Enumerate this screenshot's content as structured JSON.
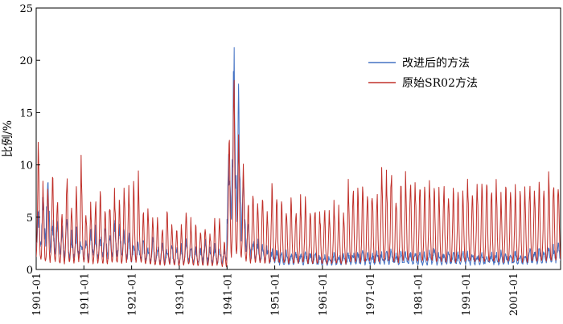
{
  "chart_data": {
    "type": "line",
    "xlabel": "",
    "ylabel": "比例/%",
    "ylim": [
      0,
      25
    ],
    "yticks": [
      0,
      5,
      10,
      15,
      20,
      25
    ],
    "x_start": "1901-01",
    "x_end": "2010-12",
    "xticks": [
      "1901-01",
      "1911-01",
      "1921-01",
      "1931-01",
      "1941-01",
      "1951-01",
      "1961-01",
      "1971-01",
      "1981-01",
      "1991-01",
      "2001-01"
    ],
    "legend_position": "top-right",
    "grid": false,
    "series": [
      {
        "name": "改进后的方法",
        "color": "#4472c4",
        "annual_peaks": [
          {
            "year": 1901,
            "value": 5.5
          },
          {
            "year": 1902,
            "value": 7.0
          },
          {
            "year": 1903,
            "value": 8.0
          },
          {
            "year": 1904,
            "value": 4.5
          },
          {
            "year": 1905,
            "value": 5.0
          },
          {
            "year": 1906,
            "value": 3.5
          },
          {
            "year": 1907,
            "value": 4.0
          },
          {
            "year": 1908,
            "value": 3.0
          },
          {
            "year": 1909,
            "value": 3.5
          },
          {
            "year": 1910,
            "value": 3.0
          },
          {
            "year": 1911,
            "value": 3.0
          },
          {
            "year": 1912,
            "value": 4.0
          },
          {
            "year": 1913,
            "value": 3.5
          },
          {
            "year": 1914,
            "value": 3.0
          },
          {
            "year": 1915,
            "value": 3.5
          },
          {
            "year": 1916,
            "value": 3.0
          },
          {
            "year": 1917,
            "value": 4.5
          },
          {
            "year": 1918,
            "value": 4.0
          },
          {
            "year": 1919,
            "value": 3.5
          },
          {
            "year": 1920,
            "value": 3.0
          },
          {
            "year": 1921,
            "value": 2.5
          },
          {
            "year": 1922,
            "value": 2.5
          },
          {
            "year": 1923,
            "value": 2.5
          },
          {
            "year": 1924,
            "value": 2.0
          },
          {
            "year": 1925,
            "value": 2.5
          },
          {
            "year": 1926,
            "value": 2.0
          },
          {
            "year": 1927,
            "value": 2.5
          },
          {
            "year": 1928,
            "value": 2.0
          },
          {
            "year": 1929,
            "value": 2.0
          },
          {
            "year": 1930,
            "value": 2.0
          },
          {
            "year": 1931,
            "value": 2.0
          },
          {
            "year": 1932,
            "value": 2.5
          },
          {
            "year": 1933,
            "value": 2.0
          },
          {
            "year": 1934,
            "value": 2.0
          },
          {
            "year": 1935,
            "value": 2.0
          },
          {
            "year": 1936,
            "value": 2.5
          },
          {
            "year": 1937,
            "value": 2.0
          },
          {
            "year": 1938,
            "value": 2.0
          },
          {
            "year": 1939,
            "value": 2.0
          },
          {
            "year": 1940,
            "value": 2.0
          },
          {
            "year": 1941,
            "value": 11.0
          },
          {
            "year": 1942,
            "value": 19.2
          },
          {
            "year": 1943,
            "value": 14.0
          },
          {
            "year": 1944,
            "value": 7.5
          },
          {
            "year": 1945,
            "value": 5.0
          },
          {
            "year": 1946,
            "value": 3.0
          },
          {
            "year": 1947,
            "value": 2.5
          },
          {
            "year": 1948,
            "value": 2.0
          },
          {
            "year": 1949,
            "value": 2.0
          },
          {
            "year": 1950,
            "value": 1.8
          },
          {
            "year": 1951,
            "value": 1.8
          },
          {
            "year": 1952,
            "value": 1.5
          },
          {
            "year": 1953,
            "value": 1.5
          },
          {
            "year": 1954,
            "value": 1.5
          },
          {
            "year": 1955,
            "value": 1.5
          },
          {
            "year": 1956,
            "value": 1.5
          },
          {
            "year": 1957,
            "value": 1.5
          },
          {
            "year": 1958,
            "value": 1.5
          },
          {
            "year": 1959,
            "value": 1.5
          },
          {
            "year": 1960,
            "value": 1.3
          },
          {
            "year": 1961,
            "value": 1.3
          },
          {
            "year": 1962,
            "value": 1.3
          },
          {
            "year": 1963,
            "value": 1.3
          },
          {
            "year": 1964,
            "value": 1.3
          },
          {
            "year": 1965,
            "value": 1.5
          },
          {
            "year": 1966,
            "value": 1.5
          },
          {
            "year": 1967,
            "value": 1.5
          },
          {
            "year": 1968,
            "value": 1.5
          },
          {
            "year": 1969,
            "value": 1.5
          },
          {
            "year": 1970,
            "value": 1.5
          },
          {
            "year": 1971,
            "value": 1.5
          },
          {
            "year": 1972,
            "value": 1.5
          },
          {
            "year": 1973,
            "value": 1.5
          },
          {
            "year": 1974,
            "value": 1.5
          },
          {
            "year": 1975,
            "value": 1.8
          },
          {
            "year": 1976,
            "value": 1.5
          },
          {
            "year": 1977,
            "value": 1.5
          },
          {
            "year": 1978,
            "value": 1.5
          },
          {
            "year": 1979,
            "value": 1.5
          },
          {
            "year": 1980,
            "value": 1.5
          },
          {
            "year": 1981,
            "value": 1.5
          },
          {
            "year": 1982,
            "value": 1.5
          },
          {
            "year": 1983,
            "value": 1.5
          },
          {
            "year": 1984,
            "value": 1.8
          },
          {
            "year": 1985,
            "value": 1.5
          },
          {
            "year": 1986,
            "value": 1.5
          },
          {
            "year": 1987,
            "value": 1.5
          },
          {
            "year": 1988,
            "value": 1.5
          },
          {
            "year": 1989,
            "value": 1.5
          },
          {
            "year": 1990,
            "value": 1.5
          },
          {
            "year": 1991,
            "value": 1.5
          },
          {
            "year": 1992,
            "value": 1.5
          },
          {
            "year": 1993,
            "value": 1.5
          },
          {
            "year": 1994,
            "value": 1.5
          },
          {
            "year": 1995,
            "value": 1.5
          },
          {
            "year": 1996,
            "value": 1.5
          },
          {
            "year": 1997,
            "value": 1.5
          },
          {
            "year": 1998,
            "value": 1.5
          },
          {
            "year": 1999,
            "value": 1.5
          },
          {
            "year": 2000,
            "value": 1.5
          },
          {
            "year": 2001,
            "value": 1.5
          },
          {
            "year": 2002,
            "value": 1.5
          },
          {
            "year": 2003,
            "value": 1.5
          },
          {
            "year": 2004,
            "value": 1.8
          },
          {
            "year": 2005,
            "value": 1.8
          },
          {
            "year": 2006,
            "value": 1.8
          },
          {
            "year": 2007,
            "value": 1.8
          },
          {
            "year": 2008,
            "value": 2.0
          },
          {
            "year": 2009,
            "value": 2.0
          },
          {
            "year": 2010,
            "value": 2.5
          }
        ]
      },
      {
        "name": "原始SR02方法",
        "color": "#c0302a",
        "annual_peaks": [
          {
            "year": 1901,
            "value": 11.0
          },
          {
            "year": 1902,
            "value": 8.0
          },
          {
            "year": 1903,
            "value": 7.5
          },
          {
            "year": 1904,
            "value": 9.5
          },
          {
            "year": 1905,
            "value": 6.5
          },
          {
            "year": 1906,
            "value": 5.5
          },
          {
            "year": 1907,
            "value": 8.5
          },
          {
            "year": 1908,
            "value": 6.0
          },
          {
            "year": 1909,
            "value": 7.5
          },
          {
            "year": 1910,
            "value": 10.2
          },
          {
            "year": 1911,
            "value": 5.5
          },
          {
            "year": 1912,
            "value": 6.0
          },
          {
            "year": 1913,
            "value": 6.5
          },
          {
            "year": 1914,
            "value": 7.0
          },
          {
            "year": 1915,
            "value": 5.5
          },
          {
            "year": 1916,
            "value": 6.5
          },
          {
            "year": 1917,
            "value": 7.0
          },
          {
            "year": 1918,
            "value": 6.0
          },
          {
            "year": 1919,
            "value": 7.5
          },
          {
            "year": 1920,
            "value": 7.5
          },
          {
            "year": 1921,
            "value": 7.5
          },
          {
            "year": 1922,
            "value": 8.5
          },
          {
            "year": 1923,
            "value": 5.5
          },
          {
            "year": 1924,
            "value": 5.5
          },
          {
            "year": 1925,
            "value": 4.5
          },
          {
            "year": 1926,
            "value": 5.0
          },
          {
            "year": 1927,
            "value": 4.0
          },
          {
            "year": 1928,
            "value": 5.5
          },
          {
            "year": 1929,
            "value": 4.5
          },
          {
            "year": 1930,
            "value": 4.0
          },
          {
            "year": 1931,
            "value": 4.0
          },
          {
            "year": 1932,
            "value": 5.0
          },
          {
            "year": 1933,
            "value": 4.5
          },
          {
            "year": 1934,
            "value": 4.0
          },
          {
            "year": 1935,
            "value": 4.0
          },
          {
            "year": 1936,
            "value": 4.0
          },
          {
            "year": 1937,
            "value": 3.5
          },
          {
            "year": 1938,
            "value": 4.5
          },
          {
            "year": 1939,
            "value": 5.0
          },
          {
            "year": 1940,
            "value": 2.5
          },
          {
            "year": 1941,
            "value": 12.5
          },
          {
            "year": 1942,
            "value": 18.6
          },
          {
            "year": 1943,
            "value": 12.5
          },
          {
            "year": 1944,
            "value": 10.0
          },
          {
            "year": 1945,
            "value": 6.0
          },
          {
            "year": 1946,
            "value": 7.5
          },
          {
            "year": 1947,
            "value": 6.5
          },
          {
            "year": 1948,
            "value": 6.5
          },
          {
            "year": 1949,
            "value": 5.5
          },
          {
            "year": 1950,
            "value": 7.5
          },
          {
            "year": 1951,
            "value": 7.0
          },
          {
            "year": 1952,
            "value": 6.5
          },
          {
            "year": 1953,
            "value": 6.0
          },
          {
            "year": 1954,
            "value": 6.5
          },
          {
            "year": 1955,
            "value": 5.5
          },
          {
            "year": 1956,
            "value": 6.5
          },
          {
            "year": 1957,
            "value": 6.5
          },
          {
            "year": 1958,
            "value": 5.5
          },
          {
            "year": 1959,
            "value": 5.5
          },
          {
            "year": 1960,
            "value": 5.5
          },
          {
            "year": 1961,
            "value": 5.5
          },
          {
            "year": 1962,
            "value": 5.5
          },
          {
            "year": 1963,
            "value": 6.0
          },
          {
            "year": 1964,
            "value": 5.5
          },
          {
            "year": 1965,
            "value": 5.5
          },
          {
            "year": 1966,
            "value": 7.7
          },
          {
            "year": 1967,
            "value": 7.5
          },
          {
            "year": 1968,
            "value": 7.0
          },
          {
            "year": 1969,
            "value": 7.5
          },
          {
            "year": 1970,
            "value": 7.5
          },
          {
            "year": 1971,
            "value": 7.5
          },
          {
            "year": 1972,
            "value": 7.0
          },
          {
            "year": 1973,
            "value": 9.0
          },
          {
            "year": 1974,
            "value": 8.5
          },
          {
            "year": 1975,
            "value": 9.0
          },
          {
            "year": 1976,
            "value": 7.0
          },
          {
            "year": 1977,
            "value": 8.0
          },
          {
            "year": 1978,
            "value": 8.5
          },
          {
            "year": 1979,
            "value": 8.5
          },
          {
            "year": 1980,
            "value": 8.0
          },
          {
            "year": 1981,
            "value": 8.0
          },
          {
            "year": 1982,
            "value": 7.5
          },
          {
            "year": 1983,
            "value": 8.5
          },
          {
            "year": 1984,
            "value": 8.0
          },
          {
            "year": 1985,
            "value": 7.0
          },
          {
            "year": 1986,
            "value": 8.0
          },
          {
            "year": 1987,
            "value": 7.5
          },
          {
            "year": 1988,
            "value": 7.0
          },
          {
            "year": 1989,
            "value": 8.0
          },
          {
            "year": 1990,
            "value": 7.5
          },
          {
            "year": 1991,
            "value": 8.5
          },
          {
            "year": 1992,
            "value": 8.0
          },
          {
            "year": 1993,
            "value": 8.0
          },
          {
            "year": 1994,
            "value": 7.5
          },
          {
            "year": 1995,
            "value": 8.0
          },
          {
            "year": 1996,
            "value": 7.5
          },
          {
            "year": 1997,
            "value": 8.0
          },
          {
            "year": 1998,
            "value": 7.0
          },
          {
            "year": 1999,
            "value": 7.5
          },
          {
            "year": 2000,
            "value": 7.5
          },
          {
            "year": 2001,
            "value": 8.0
          },
          {
            "year": 2002,
            "value": 7.0
          },
          {
            "year": 2003,
            "value": 7.5
          },
          {
            "year": 2004,
            "value": 8.0
          },
          {
            "year": 2005,
            "value": 7.5
          },
          {
            "year": 2006,
            "value": 8.0
          },
          {
            "year": 2007,
            "value": 8.0
          },
          {
            "year": 2008,
            "value": 8.5
          },
          {
            "year": 2009,
            "value": 8.0
          },
          {
            "year": 2010,
            "value": 8.5
          }
        ]
      }
    ]
  }
}
